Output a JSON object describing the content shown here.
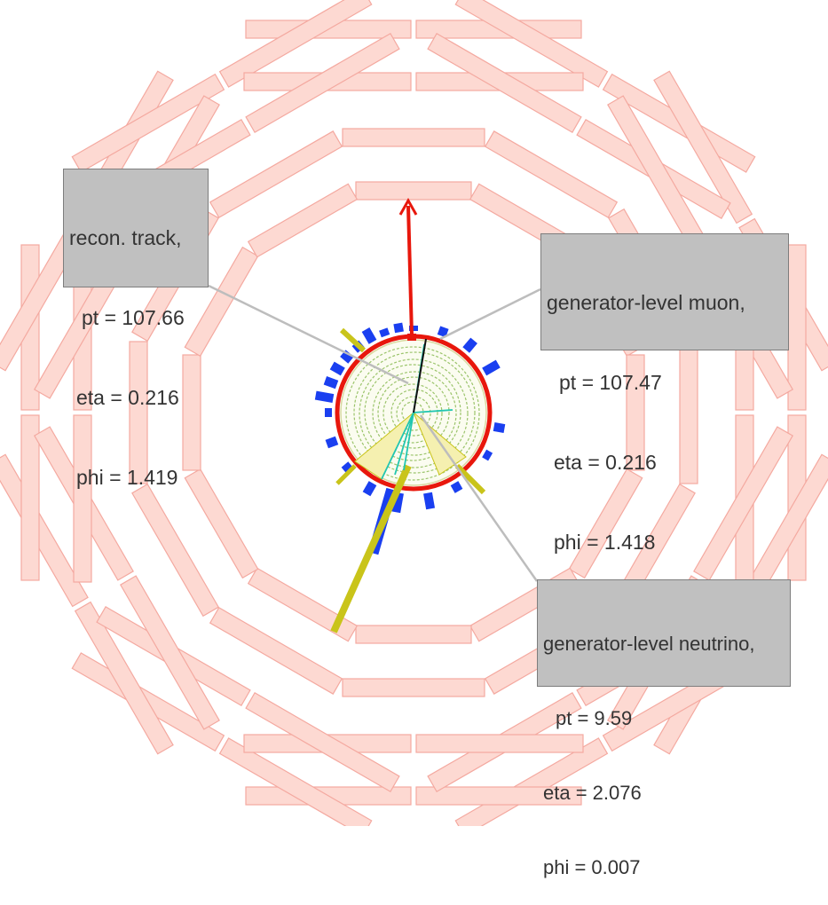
{
  "event_display": {
    "colors": {
      "muon_chamber_fill": "#fdd9d2",
      "muon_chamber_edge": "#f4a9a0",
      "muon_track": "#e8170c",
      "hcal": "#1a3ff0",
      "ecal": "#e8170c",
      "jet_cone": "#c9c41a",
      "tracker_hits": "#9bc46b",
      "secondary_tracks": "#22c6b0",
      "leader_line": "#bdbdbd"
    },
    "labels": {
      "recon_track": {
        "title": "recon. track,",
        "pt": "pt = 107.66",
        "eta": "eta = 0.216",
        "phi": "phi = 1.419"
      },
      "gen_muon": {
        "title": "generator-level muon,",
        "pt": "pt = 107.47",
        "eta": "eta = 0.216",
        "phi": "phi = 1.418"
      },
      "gen_neutrino": {
        "title": "generator-level neutrino,",
        "pt": "pt = 9.59",
        "eta": "eta = 2.076",
        "phi": "phi = 0.007"
      }
    }
  }
}
